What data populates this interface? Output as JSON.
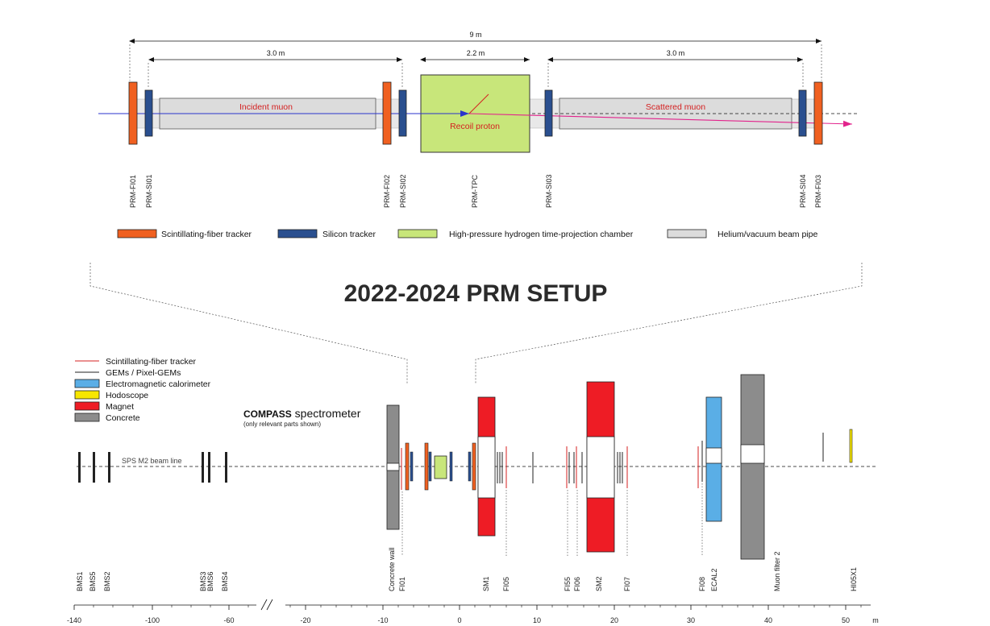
{
  "title": "2022-2024 PRM SETUP",
  "colors": {
    "fiber": "#f06020",
    "silicon": "#2a4f8f",
    "tpc": "#c8e67a",
    "pipe": "#dcdcdc",
    "magnet": "#ee1c25",
    "ecal": "#5aaee6",
    "hodo": "#f7e600",
    "concrete": "#8c8c8c",
    "muon_in": "#2a33cc",
    "muon_out": "#e2238c",
    "red_text": "#d42020"
  },
  "prm": {
    "dims": {
      "total": "9 m",
      "left": "3.0 m",
      "center": "2.2 m",
      "right": "3.0 m"
    },
    "texts": {
      "incident": "Incident muon",
      "scattered": "Scattered muon",
      "recoil": "Recoil proton"
    },
    "detectors": [
      "PRM-FI01",
      "PRM-SI01",
      "PRM-FI02",
      "PRM-SI02",
      "PRM-TPC",
      "PRM-SI03",
      "PRM-SI04",
      "PRM-FI03"
    ],
    "legend": [
      {
        "label": "Scintillating-fiber tracker",
        "color": "#f06020"
      },
      {
        "label": "Silicon tracker",
        "color": "#2a4f8f"
      },
      {
        "label": "High-pressure hydrogen time-projection chamber",
        "color": "#c8e67a"
      },
      {
        "label": "Helium/vacuum beam pipe",
        "color": "#dcdcdc"
      }
    ]
  },
  "compass": {
    "legend": [
      {
        "label": "Scintillating-fiber tracker",
        "kind": "redline"
      },
      {
        "label": "GEMs / Pixel-GEMs",
        "kind": "blackline"
      },
      {
        "label": "Electromagnetic calorimeter",
        "kind": "box",
        "color": "#5aaee6"
      },
      {
        "label": "Hodoscope",
        "kind": "box",
        "color": "#f7e600"
      },
      {
        "label": "Magnet",
        "kind": "box",
        "color": "#ee1c25"
      },
      {
        "label": "Concrete",
        "kind": "box",
        "color": "#8c8c8c"
      }
    ],
    "name_bold": "COMPASS",
    "name_rest": " spectrometer",
    "name_sub": "(only relevant parts shown)",
    "beamline": "SPS M2 beam line",
    "labels": [
      "BMS1",
      "BMS5",
      "BMS2",
      "BMS3",
      "BMS6",
      "BMS4",
      "Concrete wall",
      "FI01",
      "SM1",
      "FI05",
      "FI55",
      "FI06",
      "SM2",
      "FI07",
      "FI08",
      "ECAL2",
      "Muon filter 2",
      "HI05X1"
    ],
    "axis": {
      "ticks": [
        "-140",
        "-100",
        "-60",
        "-20",
        "-10",
        "0",
        "10",
        "20",
        "30",
        "40",
        "50"
      ],
      "unit": "m"
    }
  }
}
